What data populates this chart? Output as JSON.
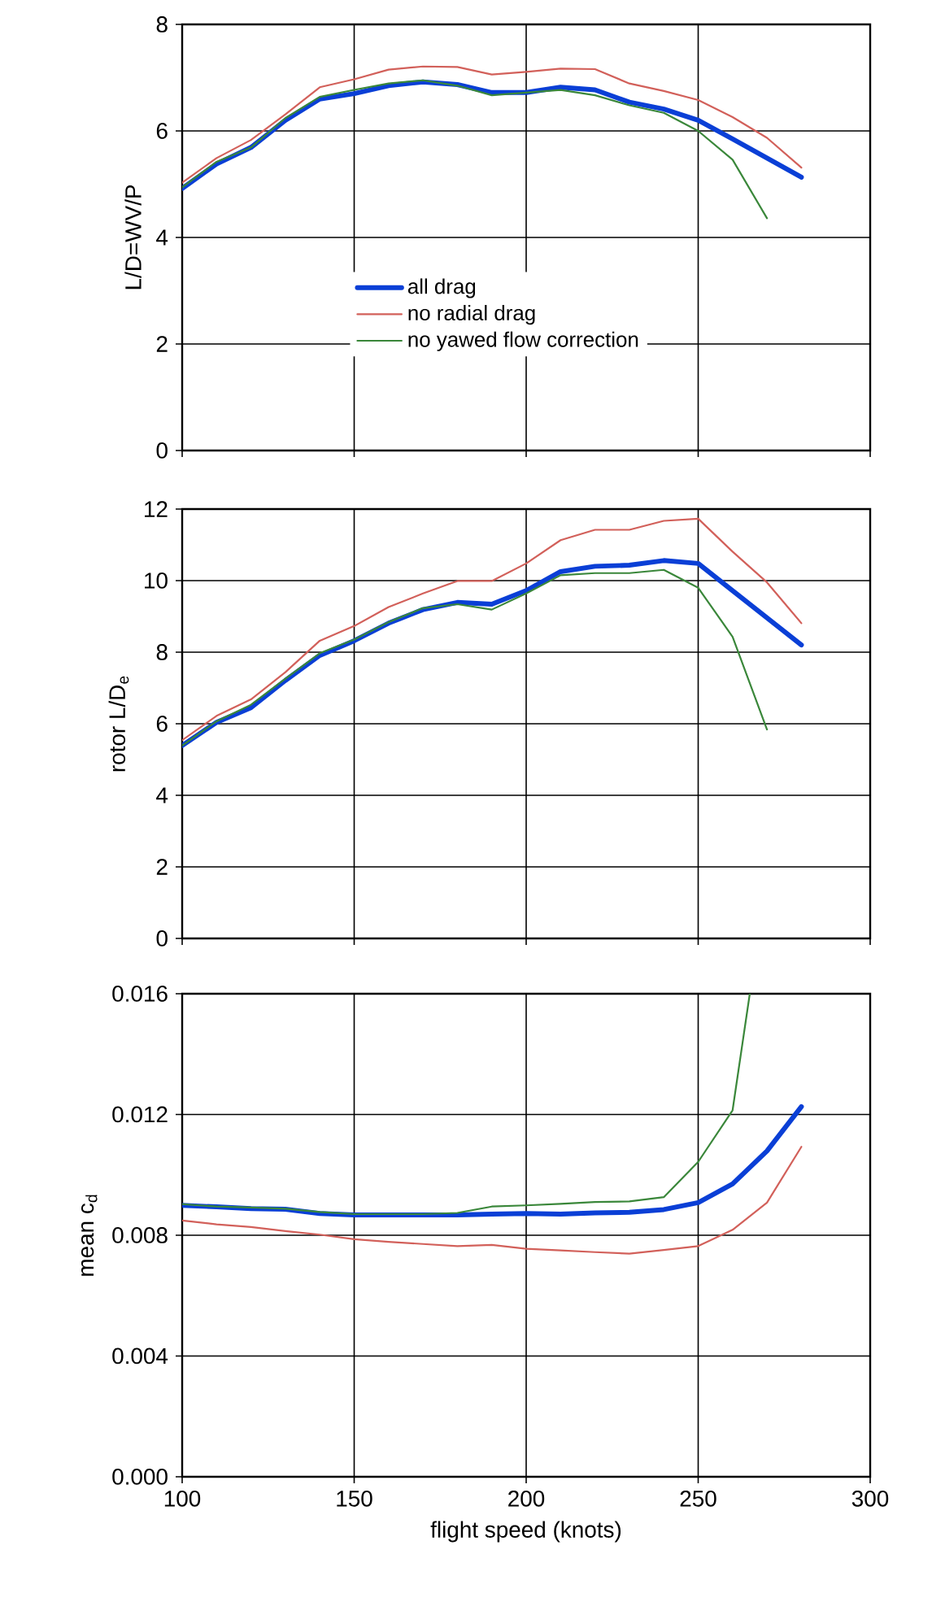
{
  "chart_data": [
    {
      "type": "line",
      "ylabel": "L/D=WV/P",
      "x": [
        100,
        110,
        120,
        130,
        140,
        150,
        160,
        170,
        180,
        190,
        200,
        210,
        220,
        230,
        240,
        250,
        260,
        270,
        280
      ],
      "xlim": [
        100,
        300
      ],
      "xticks": [
        100,
        150,
        200,
        250,
        300
      ],
      "ylim": [
        0,
        8
      ],
      "yticks": [
        0,
        2,
        4,
        6,
        8
      ],
      "grid": true,
      "legend": "bottom",
      "tick_labels": "y",
      "series": [
        {
          "name": "all drag",
          "color": "#0a3fd6",
          "values": [
            4.92,
            5.38,
            5.69,
            6.2,
            6.6,
            6.7,
            6.85,
            6.92,
            6.87,
            6.72,
            6.72,
            6.82,
            6.77,
            6.54,
            6.41,
            6.2,
            5.85,
            5.49,
            5.13
          ]
        },
        {
          "name": "no radial drag",
          "color": "#d2605a",
          "values": [
            5.03,
            5.49,
            5.83,
            6.31,
            6.82,
            6.97,
            7.15,
            7.21,
            7.2,
            7.06,
            7.11,
            7.17,
            7.16,
            6.89,
            6.75,
            6.58,
            6.26,
            5.87,
            5.31
          ]
        },
        {
          "name": "no yawed flow correction",
          "color": "#3a873a",
          "x": [
            100,
            110,
            120,
            130,
            140,
            150,
            160,
            170,
            180,
            190,
            200,
            210,
            220,
            230,
            240,
            250,
            260,
            270
          ],
          "values": [
            4.94,
            5.42,
            5.69,
            6.24,
            6.64,
            6.77,
            6.89,
            6.95,
            6.85,
            6.67,
            6.72,
            6.77,
            6.67,
            6.48,
            6.34,
            6.0,
            5.46,
            4.36
          ]
        }
      ]
    },
    {
      "type": "line",
      "ylabel": "rotor L/D$_{e}$",
      "x": [
        100,
        110,
        120,
        130,
        140,
        150,
        160,
        170,
        180,
        190,
        200,
        210,
        220,
        230,
        240,
        250,
        260,
        270,
        280
      ],
      "xlim": [
        100,
        300
      ],
      "xticks": [
        100,
        150,
        200,
        250,
        300
      ],
      "ylim": [
        0,
        12
      ],
      "yticks": [
        0,
        2,
        4,
        6,
        8,
        10,
        12
      ],
      "grid": true,
      "tick_labels": "y",
      "series": [
        {
          "color": "#0a3fd6",
          "values": [
            5.39,
            6.04,
            6.45,
            7.21,
            7.91,
            8.32,
            8.81,
            9.19,
            9.39,
            9.34,
            9.72,
            10.25,
            10.4,
            10.43,
            10.56,
            10.48,
            9.72,
            8.96,
            8.2
          ]
        },
        {
          "color": "#d2605a",
          "values": [
            5.54,
            6.22,
            6.68,
            7.44,
            8.32,
            8.73,
            9.26,
            9.64,
            9.99,
            9.99,
            10.48,
            11.13,
            11.42,
            11.42,
            11.67,
            11.73,
            10.81,
            9.95,
            8.81
          ]
        },
        {
          "color": "#3a873a",
          "x": [
            100,
            110,
            120,
            130,
            140,
            150,
            160,
            170,
            180,
            190,
            200,
            210,
            220,
            230,
            240,
            250,
            260,
            270
          ],
          "values": [
            5.39,
            6.07,
            6.53,
            7.26,
            7.97,
            8.35,
            8.84,
            9.23,
            9.34,
            9.19,
            9.64,
            10.15,
            10.21,
            10.21,
            10.3,
            9.8,
            8.43,
            5.84
          ]
        }
      ]
    },
    {
      "type": "line",
      "xlabel": "flight speed (knots)",
      "ylabel": "mean c$_{d}$",
      "x": [
        100,
        110,
        120,
        130,
        140,
        150,
        160,
        170,
        180,
        190,
        200,
        210,
        220,
        230,
        240,
        250,
        260,
        270,
        280
      ],
      "xlim": [
        100,
        300
      ],
      "xticks": [
        100,
        150,
        200,
        250,
        300
      ],
      "ylim": [
        0,
        0.016
      ],
      "yticks": [
        {
          "value": 0,
          "label": "0.000"
        },
        {
          "value": 0.004,
          "label": "0.004"
        },
        {
          "value": 0.008,
          "label": "0.008"
        },
        {
          "value": 0.012,
          "label": "0.012"
        },
        {
          "value": 0.016,
          "label": "0.016"
        }
      ],
      "grid": true,
      "series": [
        {
          "color": "#0a3fd6",
          "values": [
            0.00899,
            0.00894,
            0.00888,
            0.00886,
            0.00872,
            0.00867,
            0.00867,
            0.00867,
            0.00867,
            0.0087,
            0.00872,
            0.0087,
            0.00874,
            0.00876,
            0.00885,
            0.00908,
            0.0097,
            0.01079,
            0.01226
          ]
        },
        {
          "color": "#d2605a",
          "values": [
            0.00849,
            0.00836,
            0.00827,
            0.00814,
            0.00802,
            0.00787,
            0.00778,
            0.00771,
            0.00764,
            0.00768,
            0.00755,
            0.0075,
            0.00744,
            0.00739,
            0.00751,
            0.00764,
            0.00818,
            0.00908,
            0.01093
          ]
        },
        {
          "color": "#3a873a",
          "x": [
            100,
            110,
            120,
            130,
            140,
            150,
            160,
            170,
            180,
            190,
            200,
            210,
            220,
            230,
            240,
            250,
            260,
            265
          ],
          "values": [
            0.00903,
            0.00895,
            0.00892,
            0.00888,
            0.00877,
            0.0087,
            0.0087,
            0.0087,
            0.00874,
            0.00895,
            0.00899,
            0.00904,
            0.0091,
            0.00912,
            0.00926,
            0.01043,
            0.01214,
            0.016
          ]
        }
      ]
    }
  ]
}
